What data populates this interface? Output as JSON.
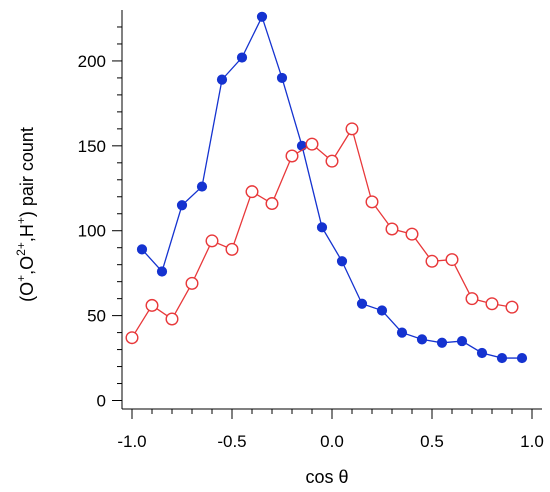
{
  "chart_data": {
    "type": "scatter",
    "title": "",
    "xlabel": "cos θ",
    "ylabel_parts": [
      "(O",
      "+",
      ",O",
      "2+",
      ",H",
      "+",
      ") pair count"
    ],
    "xlim": [
      -1.05,
      1.05
    ],
    "ylim": [
      -5,
      230
    ],
    "x_ticks": [
      -1.0,
      -0.5,
      0.0,
      0.5,
      1.0
    ],
    "x_tick_labels": [
      "-1.0",
      "-0.5",
      "0.0",
      "0.5",
      "1.0"
    ],
    "y_ticks": [
      0,
      50,
      100,
      150,
      200
    ],
    "y_tick_labels": [
      "0",
      "50",
      "100",
      "150",
      "200"
    ],
    "grid": false,
    "series": [
      {
        "color": "#1533d0",
        "marker": "filled-circle",
        "x": [
          -0.95,
          -0.85,
          -0.75,
          -0.65,
          -0.55,
          -0.45,
          -0.35,
          -0.25,
          -0.15,
          -0.05,
          0.05,
          0.15,
          0.25,
          0.35,
          0.45,
          0.55,
          0.65,
          0.75,
          0.85,
          0.95
        ],
        "y": [
          89,
          76,
          115,
          126,
          189,
          202,
          226,
          190,
          150,
          102,
          82,
          57,
          53,
          40,
          36,
          34,
          35,
          28,
          25,
          25
        ]
      },
      {
        "color": "#e8383a",
        "marker": "open-circle",
        "x": [
          -1.0,
          -0.9,
          -0.8,
          -0.7,
          -0.6,
          -0.5,
          -0.4,
          -0.3,
          -0.2,
          -0.1,
          0.0,
          0.1,
          0.2,
          0.3,
          0.4,
          0.5,
          0.6,
          0.7,
          0.8,
          0.9
        ],
        "y": [
          37,
          56,
          48,
          69,
          94,
          89,
          123,
          116,
          144,
          151,
          141,
          160,
          117,
          101,
          98,
          82,
          83,
          60,
          57,
          55
        ]
      }
    ]
  }
}
